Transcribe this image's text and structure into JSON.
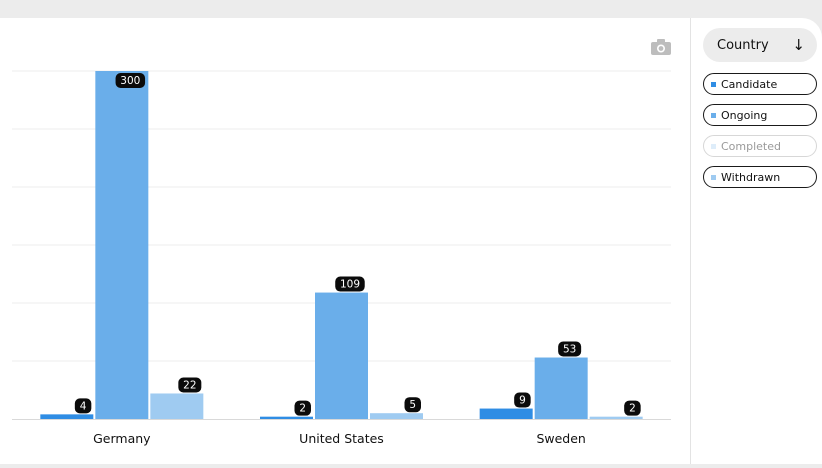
{
  "sort_control": {
    "label": "Country",
    "icon": "arrow-down-icon"
  },
  "legend": [
    {
      "label": "Candidate",
      "color": "#2f8de4",
      "active": true
    },
    {
      "label": "Ongoing",
      "color": "#6aaeea",
      "active": true
    },
    {
      "label": "Completed",
      "color": "#b5d6f4",
      "active": false
    },
    {
      "label": "Withdrawn",
      "color": "#9fcbf1",
      "active": true
    }
  ],
  "toolbar": {
    "camera_icon": "camera-icon"
  },
  "chart_data": {
    "type": "bar",
    "categories": [
      "Germany",
      "United States",
      "Sweden"
    ],
    "series": [
      {
        "name": "Candidate",
        "values": [
          4,
          2,
          9
        ],
        "color": "#2f8de4"
      },
      {
        "name": "Ongoing",
        "values": [
          300,
          109,
          53
        ],
        "color": "#6aaeea"
      },
      {
        "name": "Withdrawn",
        "values": [
          22,
          5,
          2
        ],
        "color": "#9fcbf1"
      }
    ],
    "ylim": [
      0,
      300
    ],
    "grid": true,
    "legend_placement": "right"
  }
}
